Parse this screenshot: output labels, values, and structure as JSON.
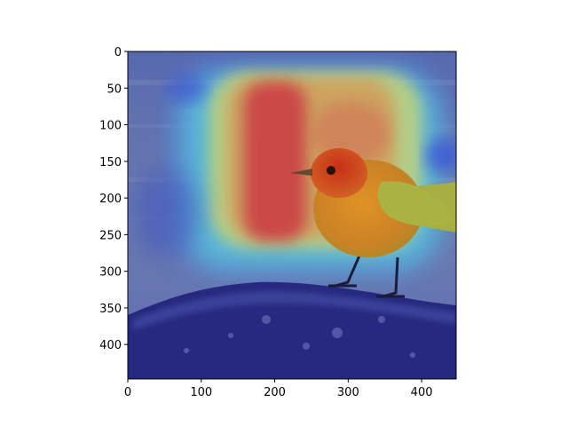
{
  "image": {
    "subject": "bird-on-rock-with-heatmap",
    "colormap": "jet",
    "overlay": "attention heatmap",
    "colors": {
      "sky": "#5a6aa8",
      "rock": "#23237a",
      "bird_body": "#e08a1a",
      "bird_head": "#d8400e",
      "bird_wing": "#b8b83a",
      "heat_red": "#d8333a",
      "heat_yellow": "#e8e05a",
      "heat_cyan": "#5ed8e0",
      "heat_blue": "#4a62d8"
    }
  },
  "axes": {
    "xlim": [
      0,
      447
    ],
    "ylim": [
      447,
      0
    ],
    "x_ticks": [
      {
        "value": 0,
        "label": "0"
      },
      {
        "value": 100,
        "label": "100"
      },
      {
        "value": 200,
        "label": "200"
      },
      {
        "value": 300,
        "label": "300"
      },
      {
        "value": 400,
        "label": "400"
      }
    ],
    "y_ticks": [
      {
        "value": 0,
        "label": "0"
      },
      {
        "value": 50,
        "label": "50"
      },
      {
        "value": 100,
        "label": "100"
      },
      {
        "value": 150,
        "label": "150"
      },
      {
        "value": 200,
        "label": "200"
      },
      {
        "value": 250,
        "label": "250"
      },
      {
        "value": 300,
        "label": "300"
      },
      {
        "value": 350,
        "label": "350"
      },
      {
        "value": 400,
        "label": "400"
      }
    ]
  }
}
